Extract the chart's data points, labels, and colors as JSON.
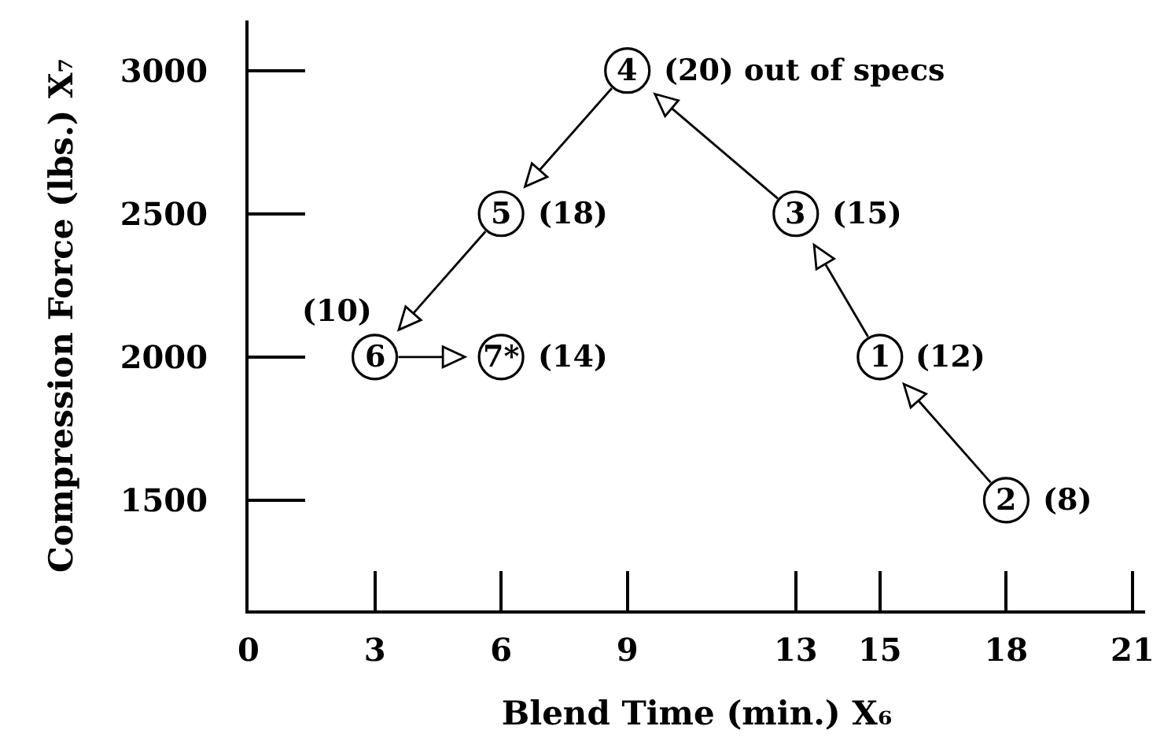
{
  "chart_data": {
    "type": "scatter",
    "xlabel": "Blend Time (min.) X₆",
    "ylabel": "Compression Force (lbs.) X₇",
    "series": [
      {
        "color": "#000000",
        "x": [
          18,
          15,
          13,
          9,
          6,
          3,
          6
        ],
        "values": [
          1500,
          2000,
          2500,
          3000,
          2500,
          2000,
          2000
        ]
      }
    ],
    "marker": "circle",
    "xlim": [
      0,
      21.3
    ],
    "ylim": [
      1115,
      3175
    ],
    "xticks": [
      0,
      3,
      6,
      9,
      13,
      15,
      18,
      21
    ],
    "yticks": [
      1500,
      2000,
      2500,
      3000
    ],
    "annotations": [
      {
        "text": "2",
        "x": 18,
        "y": 1500
      },
      {
        "text": "(8)",
        "x": 18,
        "y": 1500
      },
      {
        "text": "1",
        "x": 15,
        "y": 2000
      },
      {
        "text": "(12)",
        "x": 15,
        "y": 2000
      },
      {
        "text": "3",
        "x": 13,
        "y": 2500
      },
      {
        "text": "(15)",
        "x": 13,
        "y": 2500
      },
      {
        "text": "4",
        "x": 9,
        "y": 3000
      },
      {
        "text": "(20) out of specs",
        "x": 9,
        "y": 3000
      },
      {
        "text": "5",
        "x": 6,
        "y": 2500
      },
      {
        "text": "(18)",
        "x": 6,
        "y": 2500
      },
      {
        "text": "6",
        "x": 3,
        "y": 2000
      },
      {
        "text": "(10)",
        "x": 3,
        "y": 2000
      },
      {
        "text": "7*",
        "x": 6,
        "y": 2000
      },
      {
        "text": "(14)",
        "x": 6,
        "y": 2000
      }
    ]
  }
}
